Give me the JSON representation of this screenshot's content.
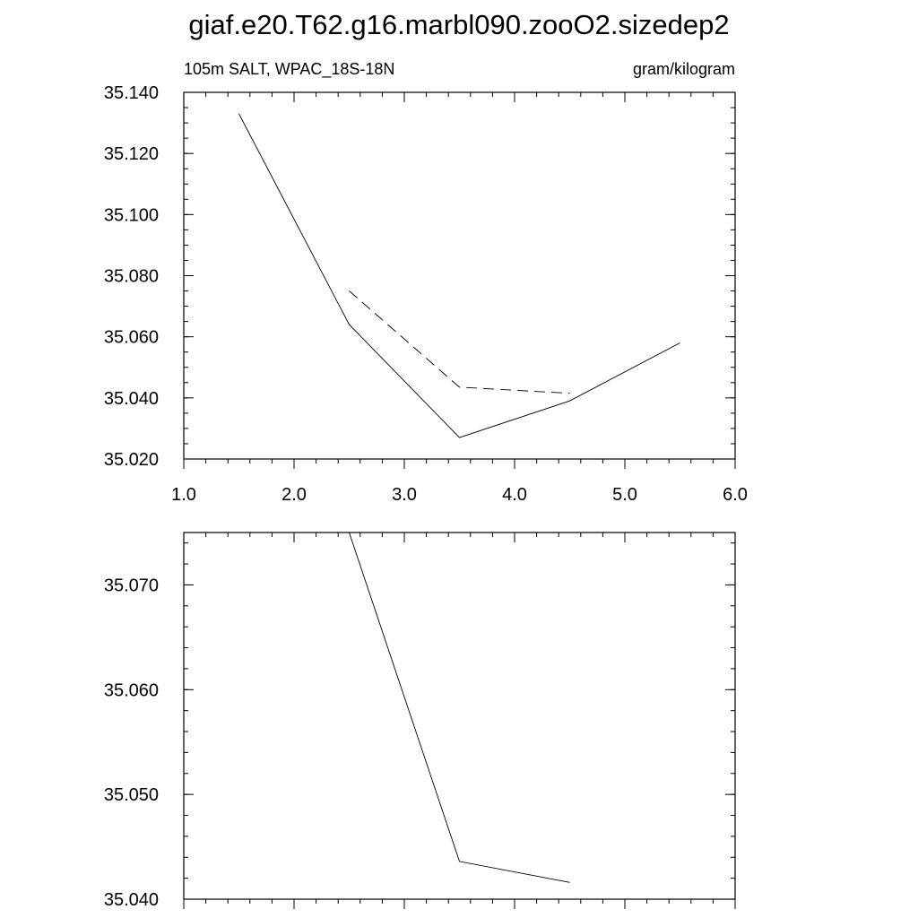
{
  "title": "giaf.e20.T62.g16.marbl090.zooO2.sizedep2",
  "chart_data": [
    {
      "type": "line",
      "subtitle_left": "105m SALT, WPAC_18S-18N",
      "subtitle_right": "gram/kilogram",
      "xlim": [
        1.0,
        6.0
      ],
      "ylim": [
        35.02,
        35.14
      ],
      "xticks": [
        "1.0",
        "2.0",
        "3.0",
        "4.0",
        "5.0",
        "6.0"
      ],
      "yticks": [
        "35.020",
        "35.040",
        "35.060",
        "35.080",
        "35.100",
        "35.120",
        "35.140"
      ],
      "series": [
        {
          "style": "solid",
          "x": [
            1.5,
            2.5,
            3.5,
            4.5,
            5.5
          ],
          "values": [
            35.133,
            35.064,
            35.027,
            35.039,
            35.058
          ]
        },
        {
          "style": "dashed",
          "x": [
            2.5,
            3.5,
            4.5
          ],
          "values": [
            35.075,
            35.0435,
            35.0415
          ]
        }
      ]
    },
    {
      "type": "line",
      "xlim": [
        1.0,
        6.0
      ],
      "ylim": [
        35.04,
        35.075
      ],
      "yticks": [
        "35.040",
        "35.050",
        "35.060",
        "35.070"
      ],
      "series": [
        {
          "style": "solid",
          "x": [
            2.5,
            3.5,
            4.5
          ],
          "values": [
            35.075,
            35.0436,
            35.0416
          ]
        }
      ]
    }
  ]
}
